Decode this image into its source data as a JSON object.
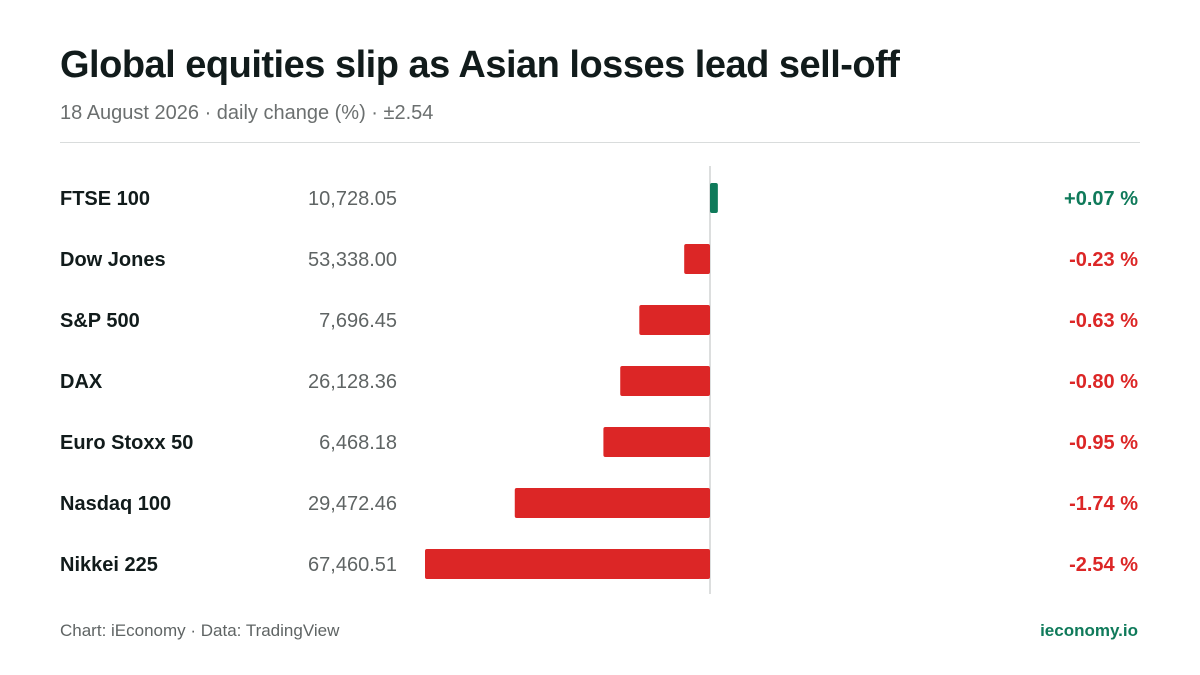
{
  "title": "Global equities slip as Asian losses lead sell-off",
  "subtitle": "18 August 2026 · daily change (%) · ±2.54",
  "footer": {
    "source": "Chart: iEconomy · Data: TradingView",
    "brand": "ieconomy.io"
  },
  "colors": {
    "positive": "#0f7a5a",
    "negative": "#dc2626",
    "axis": "#d0d3d3",
    "brand": "#0f7a5a"
  },
  "chart_data": {
    "type": "bar",
    "orientation": "horizontal",
    "categories": [
      "FTSE 100",
      "Dow Jones",
      "S&P 500",
      "DAX",
      "Euro Stoxx 50",
      "Nasdaq 100",
      "Nikkei 225"
    ],
    "levels": [
      "10,728.05",
      "53,338.00",
      "7,696.45",
      "26,128.36",
      "6,468.18",
      "29,472.46",
      "67,460.51"
    ],
    "values": [
      0.07,
      -0.23,
      -0.63,
      -0.8,
      -0.95,
      -1.74,
      -2.54
    ],
    "labels": [
      "+0.07 %",
      "-0.23 %",
      "-0.63 %",
      "-0.80 %",
      "-0.95 %",
      "-1.74 %",
      "-2.54 %"
    ],
    "xlim": [
      -2.54,
      2.54
    ],
    "grid": false,
    "legend": "none"
  }
}
